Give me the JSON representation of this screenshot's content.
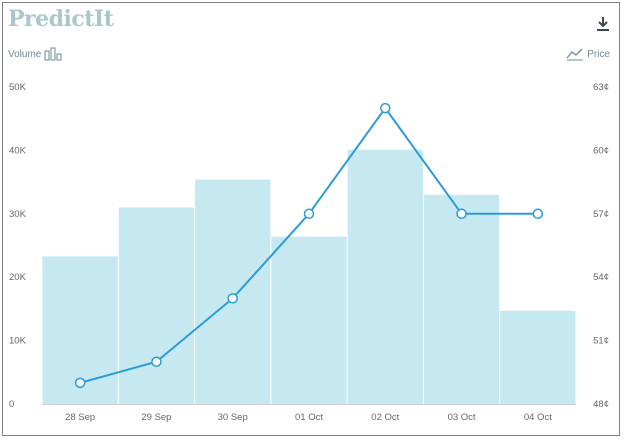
{
  "header": {
    "logo_text": "PredictIt",
    "download_icon": "download-icon"
  },
  "legend": {
    "volume_label": "Volume",
    "volume_icon": "bar-chart-icon",
    "price_label": "Price",
    "price_icon": "line-chart-icon"
  },
  "colors": {
    "bar_fill": "#c6e9f1",
    "line": "#2a9bd6",
    "marker_fill": "#ffffff"
  },
  "chart_data": {
    "type": "bar",
    "categories": [
      "28 Sep",
      "29 Sep",
      "30 Sep",
      "01 Oct",
      "02 Oct",
      "03 Oct",
      "04 Oct"
    ],
    "series": [
      {
        "name": "Volume",
        "type": "bar",
        "axis": "left",
        "values": [
          23300,
          31000,
          35400,
          26400,
          40100,
          33000,
          14700
        ]
      },
      {
        "name": "Price",
        "type": "line",
        "axis": "right",
        "values": [
          49,
          50,
          53,
          57,
          62,
          57,
          57
        ]
      }
    ],
    "y_left": {
      "ylim": [
        0,
        50000
      ],
      "ticks": [
        "0",
        "10K",
        "20K",
        "30K",
        "40K",
        "50K"
      ]
    },
    "y_right": {
      "ylim": [
        48,
        63
      ],
      "ticks": [
        "48¢",
        "51¢",
        "54¢",
        "57¢",
        "60¢",
        "63¢"
      ]
    },
    "grid": false
  }
}
